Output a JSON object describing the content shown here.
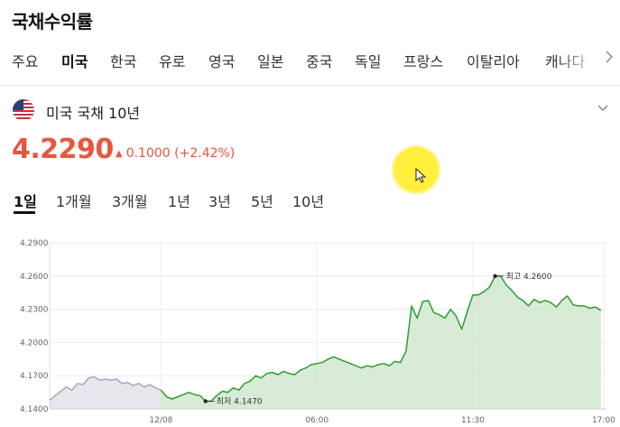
{
  "header": {
    "title": "국채수익률"
  },
  "country_tabs": [
    {
      "label": "주요",
      "active": false
    },
    {
      "label": "미국",
      "active": true
    },
    {
      "label": "한국",
      "active": false
    },
    {
      "label": "유로",
      "active": false
    },
    {
      "label": "영국",
      "active": false
    },
    {
      "label": "일본",
      "active": false
    },
    {
      "label": "중국",
      "active": false
    },
    {
      "label": "독일",
      "active": false
    },
    {
      "label": "프랑스",
      "active": false
    },
    {
      "label": "이탈리아",
      "active": false
    },
    {
      "label": "캐나다",
      "active": false
    }
  ],
  "instrument": {
    "name": "미국 국채 10년",
    "flag_icon": "us-flag-icon",
    "price": "4.2290",
    "change": "0.1000 (+2.42%)",
    "direction": "up",
    "up_color": "#e8563e"
  },
  "ranges": [
    {
      "label": "1일",
      "active": true
    },
    {
      "label": "1개월",
      "active": false
    },
    {
      "label": "3개월",
      "active": false
    },
    {
      "label": "1년",
      "active": false
    },
    {
      "label": "3년",
      "active": false
    },
    {
      "label": "5년",
      "active": false
    },
    {
      "label": "10년",
      "active": false
    }
  ],
  "chart_data": {
    "type": "area",
    "title": "",
    "xlabel": "",
    "ylabel": "",
    "ylim": [
      4.14,
      4.29
    ],
    "y_ticks": [
      "4.2900",
      "4.2600",
      "4.2300",
      "4.2000",
      "4.1700",
      "4.1400"
    ],
    "x_tick_labels": [
      "12/08",
      "06:00",
      "11:30",
      "17:00"
    ],
    "grid": true,
    "series": [
      {
        "role": "previous",
        "color": "#a8a8b8",
        "x": [
          0,
          1,
          2,
          3,
          4,
          5,
          6,
          7,
          8,
          9,
          10,
          11,
          12,
          13,
          14,
          15,
          16,
          17,
          18,
          19,
          20
        ],
        "values": [
          4.148,
          4.152,
          4.156,
          4.16,
          4.157,
          4.163,
          4.162,
          4.168,
          4.169,
          4.166,
          4.167,
          4.166,
          4.167,
          4.163,
          4.164,
          4.161,
          4.163,
          4.16,
          4.162,
          4.159,
          4.157
        ]
      },
      {
        "role": "current",
        "color": "#2e9e2e",
        "fill": "#cde6cd",
        "x": [
          20,
          21,
          22,
          23,
          24,
          25,
          26,
          27,
          28,
          29,
          30,
          31,
          32,
          33,
          34,
          35,
          36,
          37,
          38,
          39,
          40,
          41,
          42,
          43,
          44,
          45,
          46,
          47,
          48,
          49,
          50,
          51,
          52,
          53,
          54,
          55,
          56,
          57,
          58,
          59,
          60,
          61,
          62,
          63,
          64,
          65,
          66,
          67,
          68,
          69,
          70,
          71,
          72,
          73,
          74,
          75,
          76,
          77,
          78,
          79,
          80,
          81,
          82,
          83,
          84,
          85,
          86,
          87,
          88,
          89,
          90,
          91,
          92,
          93,
          94,
          95,
          96,
          97,
          98,
          99
        ],
        "values": [
          4.157,
          4.151,
          4.149,
          4.151,
          4.153,
          4.155,
          4.153,
          4.152,
          4.147,
          4.147,
          4.152,
          4.156,
          4.155,
          4.159,
          4.157,
          4.163,
          4.165,
          4.17,
          4.168,
          4.172,
          4.173,
          4.171,
          4.174,
          4.172,
          4.171,
          4.175,
          4.177,
          4.18,
          4.181,
          4.182,
          4.185,
          4.187,
          4.185,
          4.183,
          4.181,
          4.179,
          4.177,
          4.179,
          4.178,
          4.18,
          4.181,
          4.179,
          4.183,
          4.182,
          4.192,
          4.233,
          4.222,
          4.237,
          4.238,
          4.227,
          4.225,
          4.222,
          4.23,
          4.224,
          4.212,
          4.228,
          4.243,
          4.243,
          4.246,
          4.25,
          4.26,
          4.26,
          4.252,
          4.247,
          4.241,
          4.238,
          4.233,
          4.239,
          4.236,
          4.238,
          4.236,
          4.232,
          4.238,
          4.242,
          4.234,
          4.233,
          4.233,
          4.231,
          4.232,
          4.229
        ]
      }
    ],
    "annotations": [
      {
        "label": "최고 4.2600",
        "x": 80,
        "y": 4.26
      },
      {
        "label": "최저 4.1470",
        "x": 28,
        "y": 4.147
      }
    ]
  }
}
